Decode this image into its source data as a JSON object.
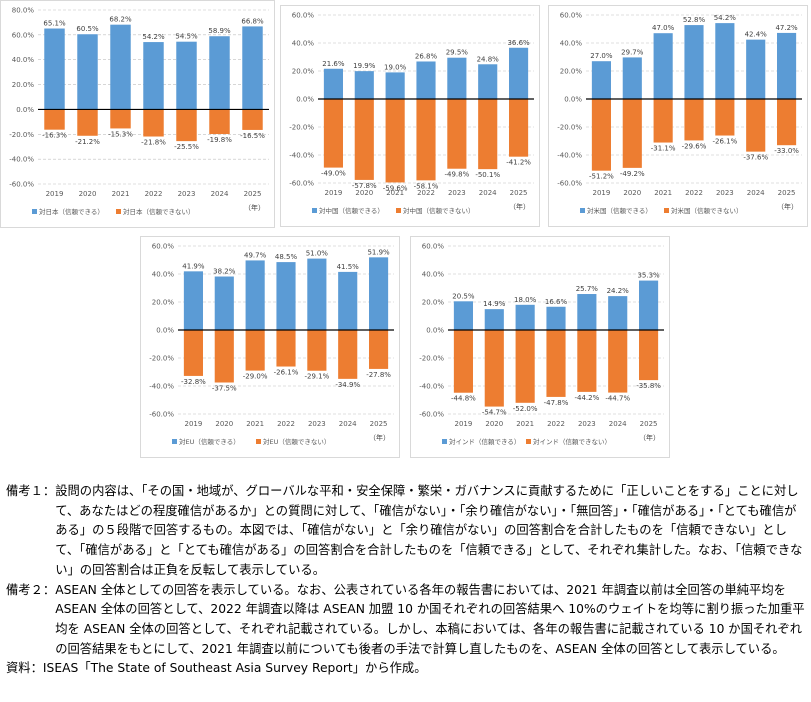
{
  "chart_data": [
    {
      "type": "bar",
      "categories": [
        "2019",
        "2020",
        "2021",
        "2022",
        "2023",
        "2024",
        "2025"
      ],
      "series": [
        {
          "name": "対日本（信頼できる）",
          "values": [
            65.1,
            60.5,
            68.2,
            54.2,
            54.5,
            58.9,
            66.8
          ],
          "labels": [
            "65.1%",
            "60.5%",
            "68.2%",
            "54.2%",
            "54.5%",
            "58.9%",
            "66.8%"
          ]
        },
        {
          "name": "対日本（信頼できない）",
          "values": [
            -16.3,
            -21.2,
            -15.3,
            -21.8,
            -25.5,
            -19.8,
            -16.5
          ],
          "labels": [
            "-16.3%",
            "-21.2%",
            "-15.3%",
            "-21.8%",
            "-25.5%",
            "-19.8%",
            "-16.5%"
          ]
        }
      ],
      "ylim": [
        -60,
        80
      ],
      "yticks": [
        "80.0%",
        "60.0%",
        "40.0%",
        "20.0%",
        "0.0%",
        "-20.0%",
        "-40.0%",
        "-60.0%"
      ],
      "unit": "（年）",
      "colors": [
        "#5b9bd5",
        "#ed7d31"
      ]
    },
    {
      "type": "bar",
      "categories": [
        "2019",
        "2020",
        "2021",
        "2022",
        "2023",
        "2024",
        "2025"
      ],
      "series": [
        {
          "name": "対中国（信頼できる）",
          "values": [
            21.6,
            19.9,
            19.0,
            26.8,
            29.5,
            24.8,
            36.6
          ],
          "labels": [
            "21.6%",
            "19.9%",
            "19.0%",
            "26.8%",
            "29.5%",
            "24.8%",
            "36.6%"
          ]
        },
        {
          "name": "対中国（信頼できない）",
          "values": [
            -49.0,
            -57.8,
            -59.6,
            -58.1,
            -49.8,
            -50.1,
            -41.2
          ],
          "labels": [
            "-49.0%",
            "-57.8%",
            "-59.6%",
            "-58.1%",
            "-49.8%",
            "-50.1%",
            "-41.2%"
          ]
        }
      ],
      "ylim": [
        -60,
        60
      ],
      "yticks": [
        "60.0%",
        "40.0%",
        "20.0%",
        "0.0%",
        "-20.0%",
        "-40.0%",
        "-60.0%"
      ],
      "unit": "（年）",
      "colors": [
        "#5b9bd5",
        "#ed7d31"
      ]
    },
    {
      "type": "bar",
      "categories": [
        "2019",
        "2020",
        "2021",
        "2022",
        "2023",
        "2024",
        "2025"
      ],
      "series": [
        {
          "name": "対米国（信頼できる）",
          "values": [
            27.0,
            29.7,
            47.0,
            52.8,
            54.2,
            42.4,
            47.2
          ],
          "labels": [
            "27.0%",
            "29.7%",
            "47.0%",
            "52.8%",
            "54.2%",
            "42.4%",
            "47.2%"
          ]
        },
        {
          "name": "対米国（信頼できない）",
          "values": [
            -51.2,
            -49.2,
            -31.1,
            -29.6,
            -26.1,
            -37.6,
            -33.0
          ],
          "labels": [
            "-51.2%",
            "-49.2%",
            "-31.1%",
            "-29.6%",
            "-26.1%",
            "-37.6%",
            "-33.0%"
          ]
        }
      ],
      "ylim": [
        -60,
        60
      ],
      "yticks": [
        "60.0%",
        "40.0%",
        "20.0%",
        "0.0%",
        "-20.0%",
        "-40.0%",
        "-60.0%"
      ],
      "unit": "（年）",
      "colors": [
        "#5b9bd5",
        "#ed7d31"
      ]
    },
    {
      "type": "bar",
      "categories": [
        "2019",
        "2020",
        "2021",
        "2022",
        "2023",
        "2024",
        "2025"
      ],
      "series": [
        {
          "name": "対EU（信頼できる）",
          "values": [
            41.9,
            38.2,
            49.7,
            48.5,
            51.0,
            41.5,
            51.9
          ],
          "labels": [
            "41.9%",
            "38.2%",
            "49.7%",
            "48.5%",
            "51.0%",
            "41.5%",
            "51.9%"
          ]
        },
        {
          "name": "対EU（信頼できない）",
          "values": [
            -32.8,
            -37.5,
            -29.0,
            -26.1,
            -29.1,
            -34.9,
            -27.8
          ],
          "labels": [
            "-32.8%",
            "-37.5%",
            "-29.0%",
            "-26.1%",
            "-29.1%",
            "-34.9%",
            "-27.8%"
          ]
        }
      ],
      "ylim": [
        -60,
        60
      ],
      "yticks": [
        "60.0%",
        "40.0%",
        "20.0%",
        "0.0%",
        "-20.0%",
        "-40.0%",
        "-60.0%"
      ],
      "unit": "（年）",
      "colors": [
        "#5b9bd5",
        "#ed7d31"
      ]
    },
    {
      "type": "bar",
      "categories": [
        "2019",
        "2020",
        "2021",
        "2022",
        "2023",
        "2024",
        "2025"
      ],
      "series": [
        {
          "name": "対インド（信頼できる）",
          "values": [
            20.5,
            14.9,
            18.0,
            16.6,
            25.7,
            24.2,
            35.3
          ],
          "labels": [
            "20.5%",
            "14.9%",
            "18.0%",
            "16.6%",
            "25.7%",
            "24.2%",
            "35.3%"
          ]
        },
        {
          "name": "対インド（信頼できない）",
          "values": [
            -44.8,
            -54.7,
            -52.0,
            -47.8,
            -44.2,
            -44.7,
            -35.8
          ],
          "labels": [
            "-44.8%",
            "-54.7%",
            "-52.0%",
            "-47.8%",
            "-44.2%",
            "-44.7%",
            "-35.8%"
          ]
        }
      ],
      "ylim": [
        -60,
        60
      ],
      "yticks": [
        "60.0%",
        "40.0%",
        "20.0%",
        "0.0%",
        "-20.0%",
        "-40.0%",
        "-60.0%"
      ],
      "unit": "（年）",
      "colors": [
        "#5b9bd5",
        "#ed7d31"
      ]
    }
  ],
  "notes": {
    "note1_label": "備考１：",
    "note1_text": "設問の内容は、「その国・地域が、グローバルな平和・安全保障・繁栄・ガバナンスに貢献するために「正しいことをする」ことに対して、あなたはどの程度確信があるか」との質問に対して、「確信がない」・「余り確信がない」・「無回答」・「確信がある」・「とても確信がある」の５段階で回答するもの。本図では、「確信がない」と「余り確信がない」の回答割合を合計したものを「信頼できない」として、「確信がある」と「とても確信がある」の回答割合を合計したものを「信頼できる」として、それぞれ集計した。なお、「信頼できない」の回答割合は正負を反転して表示している。",
    "note2_label": "備考２：",
    "note2_text": "ASEAN 全体としての回答を表示している。なお、公表されている各年の報告書においては、2021 年調査以前は全回答の単純平均を ASEAN 全体の回答として、2022 年調査以降は ASEAN 加盟 10 か国それぞれの回答結果へ 10%のウェイトを均等に割り振った加重平均を ASEAN 全体の回答として、それぞれ記載されている。しかし、本稿においては、各年の報告書に記載されている 10 か国それぞれの回答結果をもとにして、2021 年調査以前についても後者の手法で計算し直したものを、ASEAN 全体の回答として表示している。",
    "source_label": "資料：",
    "source_text": "ISEAS「The State of Southeast Asia Survey Report」から作成。"
  }
}
